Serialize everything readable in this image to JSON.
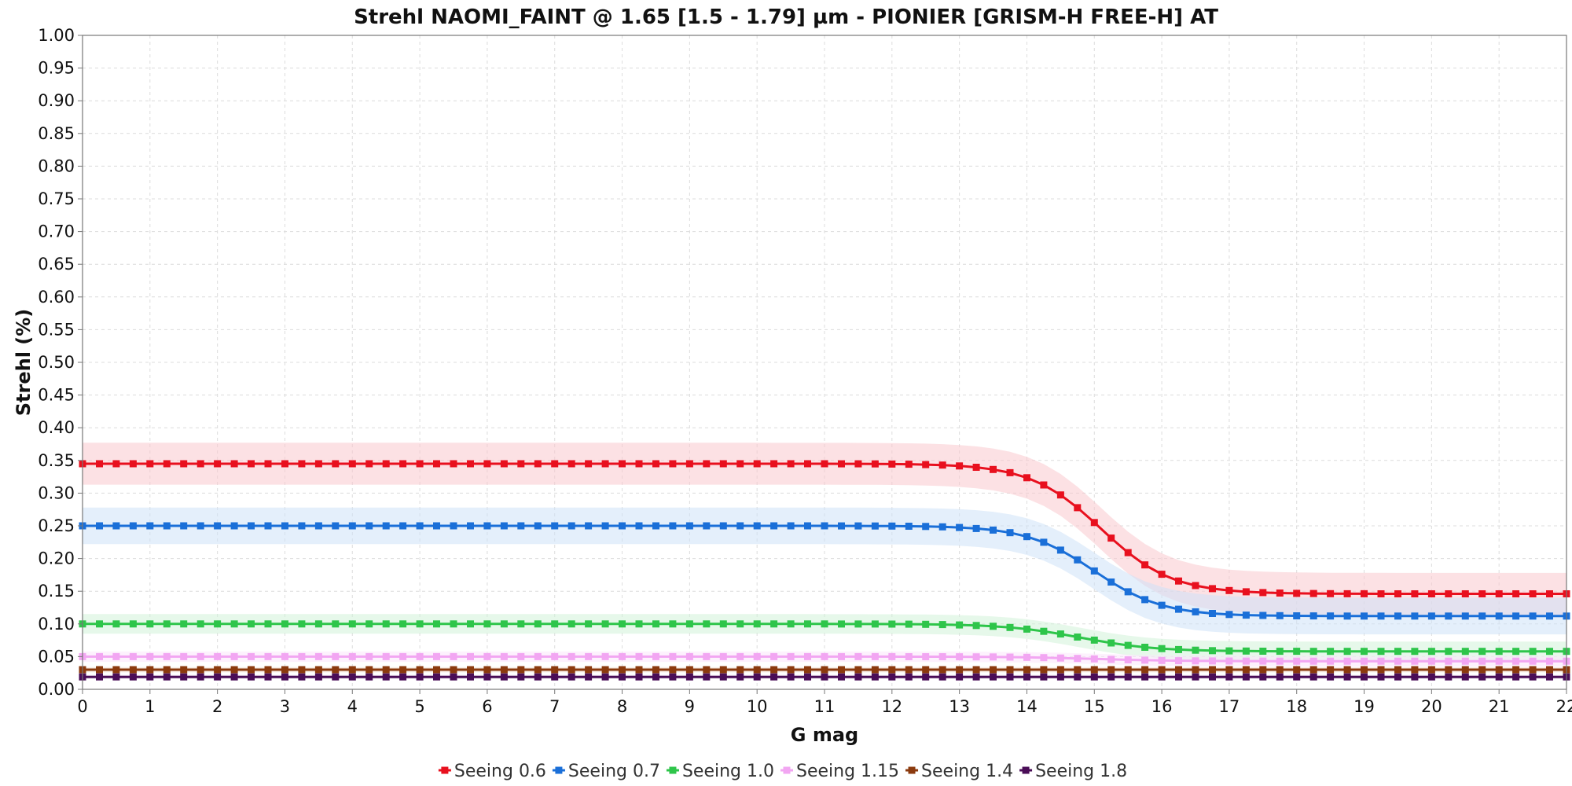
{
  "chart_data": {
    "type": "line",
    "title": "Strehl NAOMI_FAINT @ 1.65 [1.5 - 1.79] µm - PIONIER [GRISM-H FREE-H] AT",
    "xlabel": "G mag",
    "ylabel": "Strehl (%)",
    "xlim": [
      0,
      22
    ],
    "ylim": [
      0,
      1
    ],
    "x_ticks": [
      "0",
      "1",
      "2",
      "3",
      "4",
      "5",
      "6",
      "7",
      "8",
      "9",
      "10",
      "11",
      "12",
      "13",
      "14",
      "15",
      "16",
      "17",
      "18",
      "19",
      "20",
      "21",
      "22"
    ],
    "y_ticks": [
      "0.00",
      "0.05",
      "0.10",
      "0.15",
      "0.20",
      "0.25",
      "0.30",
      "0.35",
      "0.40",
      "0.45",
      "0.50",
      "0.55",
      "0.60",
      "0.65",
      "0.70",
      "0.75",
      "0.80",
      "0.85",
      "0.90",
      "0.95",
      "1.00"
    ],
    "grid": true,
    "legend_position": "bottom",
    "x_step": 0.25,
    "series": [
      {
        "name": "Seeing 0.6",
        "color": "#e8101e",
        "band_color": "#f9c9cd",
        "high": 0.345,
        "low": 0.146,
        "mid": 15.1,
        "width": 0.52,
        "band": 0.032
      },
      {
        "name": "Seeing 0.7",
        "color": "#1a6fd8",
        "band_color": "#cde2f7",
        "high": 0.25,
        "low": 0.112,
        "mid": 15.0,
        "width": 0.5,
        "band": 0.028
      },
      {
        "name": "Seeing 1.0",
        "color": "#2ec54a",
        "band_color": "#d2f2d8",
        "high": 0.1,
        "low": 0.058,
        "mid": 14.8,
        "width": 0.55,
        "band": 0.015
      },
      {
        "name": "Seeing 1.15",
        "color": "#f2a6f2",
        "band_color": "#fbe6fb",
        "high": 0.05,
        "low": 0.043,
        "mid": 15.0,
        "width": 0.6,
        "band": 0.008
      },
      {
        "name": "Seeing 1.4",
        "color": "#8b3a0e",
        "band_color": "#eedccf",
        "high": 0.03,
        "low": 0.03,
        "mid": 15.0,
        "width": 0.6,
        "band": 0.004
      },
      {
        "name": "Seeing 1.8",
        "color": "#4a0d57",
        "band_color": "#e2d4e6",
        "high": 0.019,
        "low": 0.019,
        "mid": 15.0,
        "width": 0.6,
        "band": 0.003
      }
    ]
  }
}
